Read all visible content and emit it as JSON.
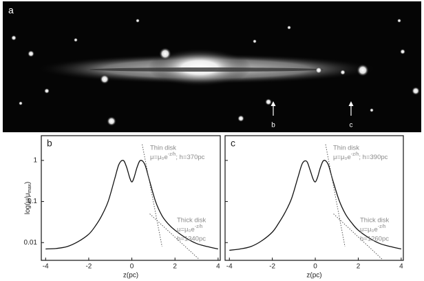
{
  "image_panel": {
    "label": "a",
    "markers": [
      "b",
      "c"
    ]
  },
  "chart_data": [
    {
      "type": "line",
      "panel_label": "b",
      "x_label": "z(pc)",
      "y_label": {
        "text": "log(μ/μ",
        "sub": "max",
        "end": ")"
      },
      "log_y": true,
      "show_ytick_labels": true,
      "color": "#111",
      "xlim": [
        -4.2,
        4.1
      ],
      "xticks": [
        -4,
        -2,
        0,
        2,
        4
      ],
      "ylim": [
        0.0037,
        4
      ],
      "yticks": [
        0.01,
        0.1,
        1
      ],
      "x": [
        -4,
        -3.5,
        -3,
        -2.5,
        -2,
        -1.7,
        -1.4,
        -1.1,
        -0.8,
        -0.6,
        -0.4,
        -0.25,
        -0.1,
        0,
        0.1,
        0.25,
        0.4,
        0.6,
        0.8,
        1.1,
        1.4,
        1.7,
        2,
        2.5,
        3,
        3.5,
        4
      ],
      "values": [
        0.007,
        0.0072,
        0.008,
        0.0105,
        0.016,
        0.025,
        0.045,
        0.1,
        0.35,
        0.8,
        1.0,
        0.7,
        0.38,
        0.3,
        0.38,
        0.7,
        1.0,
        0.8,
        0.35,
        0.1,
        0.045,
        0.028,
        0.02,
        0.013,
        0.0095,
        0.008,
        0.007
      ],
      "fits": [
        {
          "x": [
            0.48,
            1.4
          ],
          "values": [
            2.45,
            0.008
          ]
        },
        {
          "x": [
            0.83,
            3.1
          ],
          "values": [
            0.05,
            0.004
          ]
        }
      ],
      "annotations": [
        {
          "title": "Thin disk",
          "formula": "μ=μ₀e",
          "exp": "-z/h",
          "h": "; h=370pc"
        },
        {
          "title": "Thick disk",
          "formula": "μ=μ₀e",
          "exp": "-z/h",
          "h": "h=1340pc"
        }
      ]
    },
    {
      "type": "line",
      "panel_label": "c",
      "x_label": "z(pc)",
      "log_y": true,
      "show_ytick_labels": false,
      "color": "#111",
      "xlim": [
        -4.2,
        4.1
      ],
      "xticks": [
        -4,
        -2,
        0,
        2,
        4
      ],
      "ylim": [
        0.0037,
        4
      ],
      "yticks": [
        0.01,
        0.1,
        1
      ],
      "x": [
        -4,
        -3.5,
        -3,
        -2.5,
        -2,
        -1.7,
        -1.4,
        -1.1,
        -0.8,
        -0.6,
        -0.4,
        -0.25,
        -0.1,
        0,
        0.1,
        0.25,
        0.4,
        0.6,
        0.8,
        1.1,
        1.4,
        1.7,
        2,
        2.5,
        3,
        3.5,
        4
      ],
      "values": [
        0.0065,
        0.007,
        0.008,
        0.011,
        0.018,
        0.03,
        0.055,
        0.12,
        0.4,
        0.85,
        0.95,
        0.6,
        0.35,
        0.3,
        0.38,
        0.7,
        1.0,
        0.8,
        0.35,
        0.11,
        0.05,
        0.03,
        0.02,
        0.013,
        0.0095,
        0.008,
        0.007
      ],
      "fits": [
        {
          "x": [
            0.48,
            1.38
          ],
          "values": [
            2.45,
            0.008
          ]
        },
        {
          "x": [
            0.85,
            3.1
          ],
          "values": [
            0.05,
            0.004
          ]
        }
      ],
      "annotations": [
        {
          "title": "Thin disk",
          "formula": "μ=μ₀e",
          "exp": "-z/h",
          "h": "; h=390pc"
        },
        {
          "title": "Thick disk",
          "formula": "μ=μ₀e",
          "exp": "-z/h",
          "h": "h=1260pc"
        }
      ]
    }
  ]
}
